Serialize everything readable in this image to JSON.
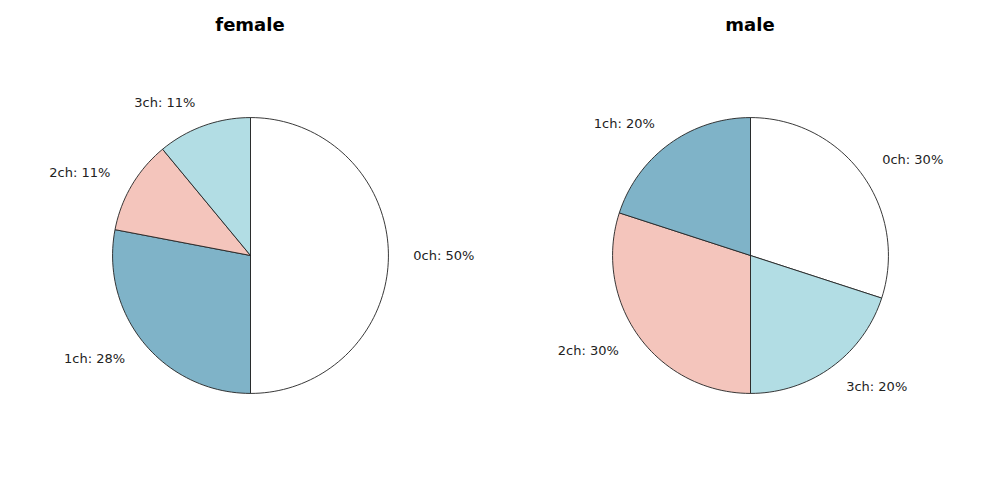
{
  "chart_data": [
    {
      "type": "pie",
      "title": "female",
      "categories": [
        "0ch: 50%",
        "1ch: 28%",
        "2ch: 11%",
        "3ch: 11%"
      ],
      "values": [
        50,
        28,
        11,
        11
      ],
      "colors": [
        "#ffffff",
        "#7fb3c8",
        "#f4c5bc",
        "#b2dde4"
      ]
    },
    {
      "type": "pie",
      "title": "male",
      "categories": [
        "0ch: 30%",
        "3ch: 20%",
        "2ch: 30%",
        "1ch: 20%"
      ],
      "values": [
        30,
        20,
        30,
        20
      ],
      "colors": [
        "#ffffff",
        "#b2dde4",
        "#f4c5bc",
        "#7fb3c8"
      ]
    }
  ]
}
